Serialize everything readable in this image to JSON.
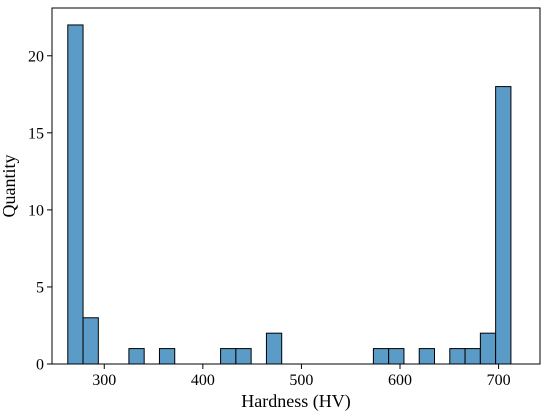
{
  "chart_data": {
    "type": "bar",
    "title": "",
    "xlabel": "Hardness (HV)",
    "ylabel": "Quantity",
    "xlim": [
      247,
      742
    ],
    "ylim": [
      0,
      23.1
    ],
    "xticks": [
      300,
      400,
      500,
      600,
      700
    ],
    "yticks": [
      0,
      5,
      10,
      15,
      20
    ],
    "grid": false,
    "bar_color": "#5b9bc8",
    "edge_color": "#000000",
    "bin_width": 15.5,
    "bins": [
      {
        "x0": 263,
        "x1": 278.5,
        "count": 22
      },
      {
        "x0": 278.5,
        "x1": 294,
        "count": 3
      },
      {
        "x0": 294,
        "x1": 309.5,
        "count": 0
      },
      {
        "x0": 309.5,
        "x1": 325,
        "count": 0
      },
      {
        "x0": 325,
        "x1": 340.5,
        "count": 1
      },
      {
        "x0": 340.5,
        "x1": 356,
        "count": 0
      },
      {
        "x0": 356,
        "x1": 371.5,
        "count": 1
      },
      {
        "x0": 371.5,
        "x1": 387,
        "count": 0
      },
      {
        "x0": 387,
        "x1": 402.5,
        "count": 0
      },
      {
        "x0": 402.5,
        "x1": 418,
        "count": 0
      },
      {
        "x0": 418,
        "x1": 433.5,
        "count": 1
      },
      {
        "x0": 433.5,
        "x1": 449,
        "count": 1
      },
      {
        "x0": 449,
        "x1": 464.5,
        "count": 0
      },
      {
        "x0": 464.5,
        "x1": 480,
        "count": 2
      },
      {
        "x0": 480,
        "x1": 495.5,
        "count": 0
      },
      {
        "x0": 495.5,
        "x1": 511,
        "count": 0
      },
      {
        "x0": 511,
        "x1": 526.5,
        "count": 0
      },
      {
        "x0": 526.5,
        "x1": 542,
        "count": 0
      },
      {
        "x0": 542,
        "x1": 557.5,
        "count": 0
      },
      {
        "x0": 557.5,
        "x1": 573,
        "count": 0
      },
      {
        "x0": 573,
        "x1": 588.5,
        "count": 1
      },
      {
        "x0": 588.5,
        "x1": 604,
        "count": 1
      },
      {
        "x0": 604,
        "x1": 619.5,
        "count": 0
      },
      {
        "x0": 619.5,
        "x1": 635,
        "count": 1
      },
      {
        "x0": 635,
        "x1": 650.5,
        "count": 0
      },
      {
        "x0": 650.5,
        "x1": 666,
        "count": 1
      },
      {
        "x0": 666,
        "x1": 681.5,
        "count": 1
      },
      {
        "x0": 681.5,
        "x1": 697,
        "count": 2
      },
      {
        "x0": 697,
        "x1": 712.5,
        "count": 18
      }
    ]
  }
}
